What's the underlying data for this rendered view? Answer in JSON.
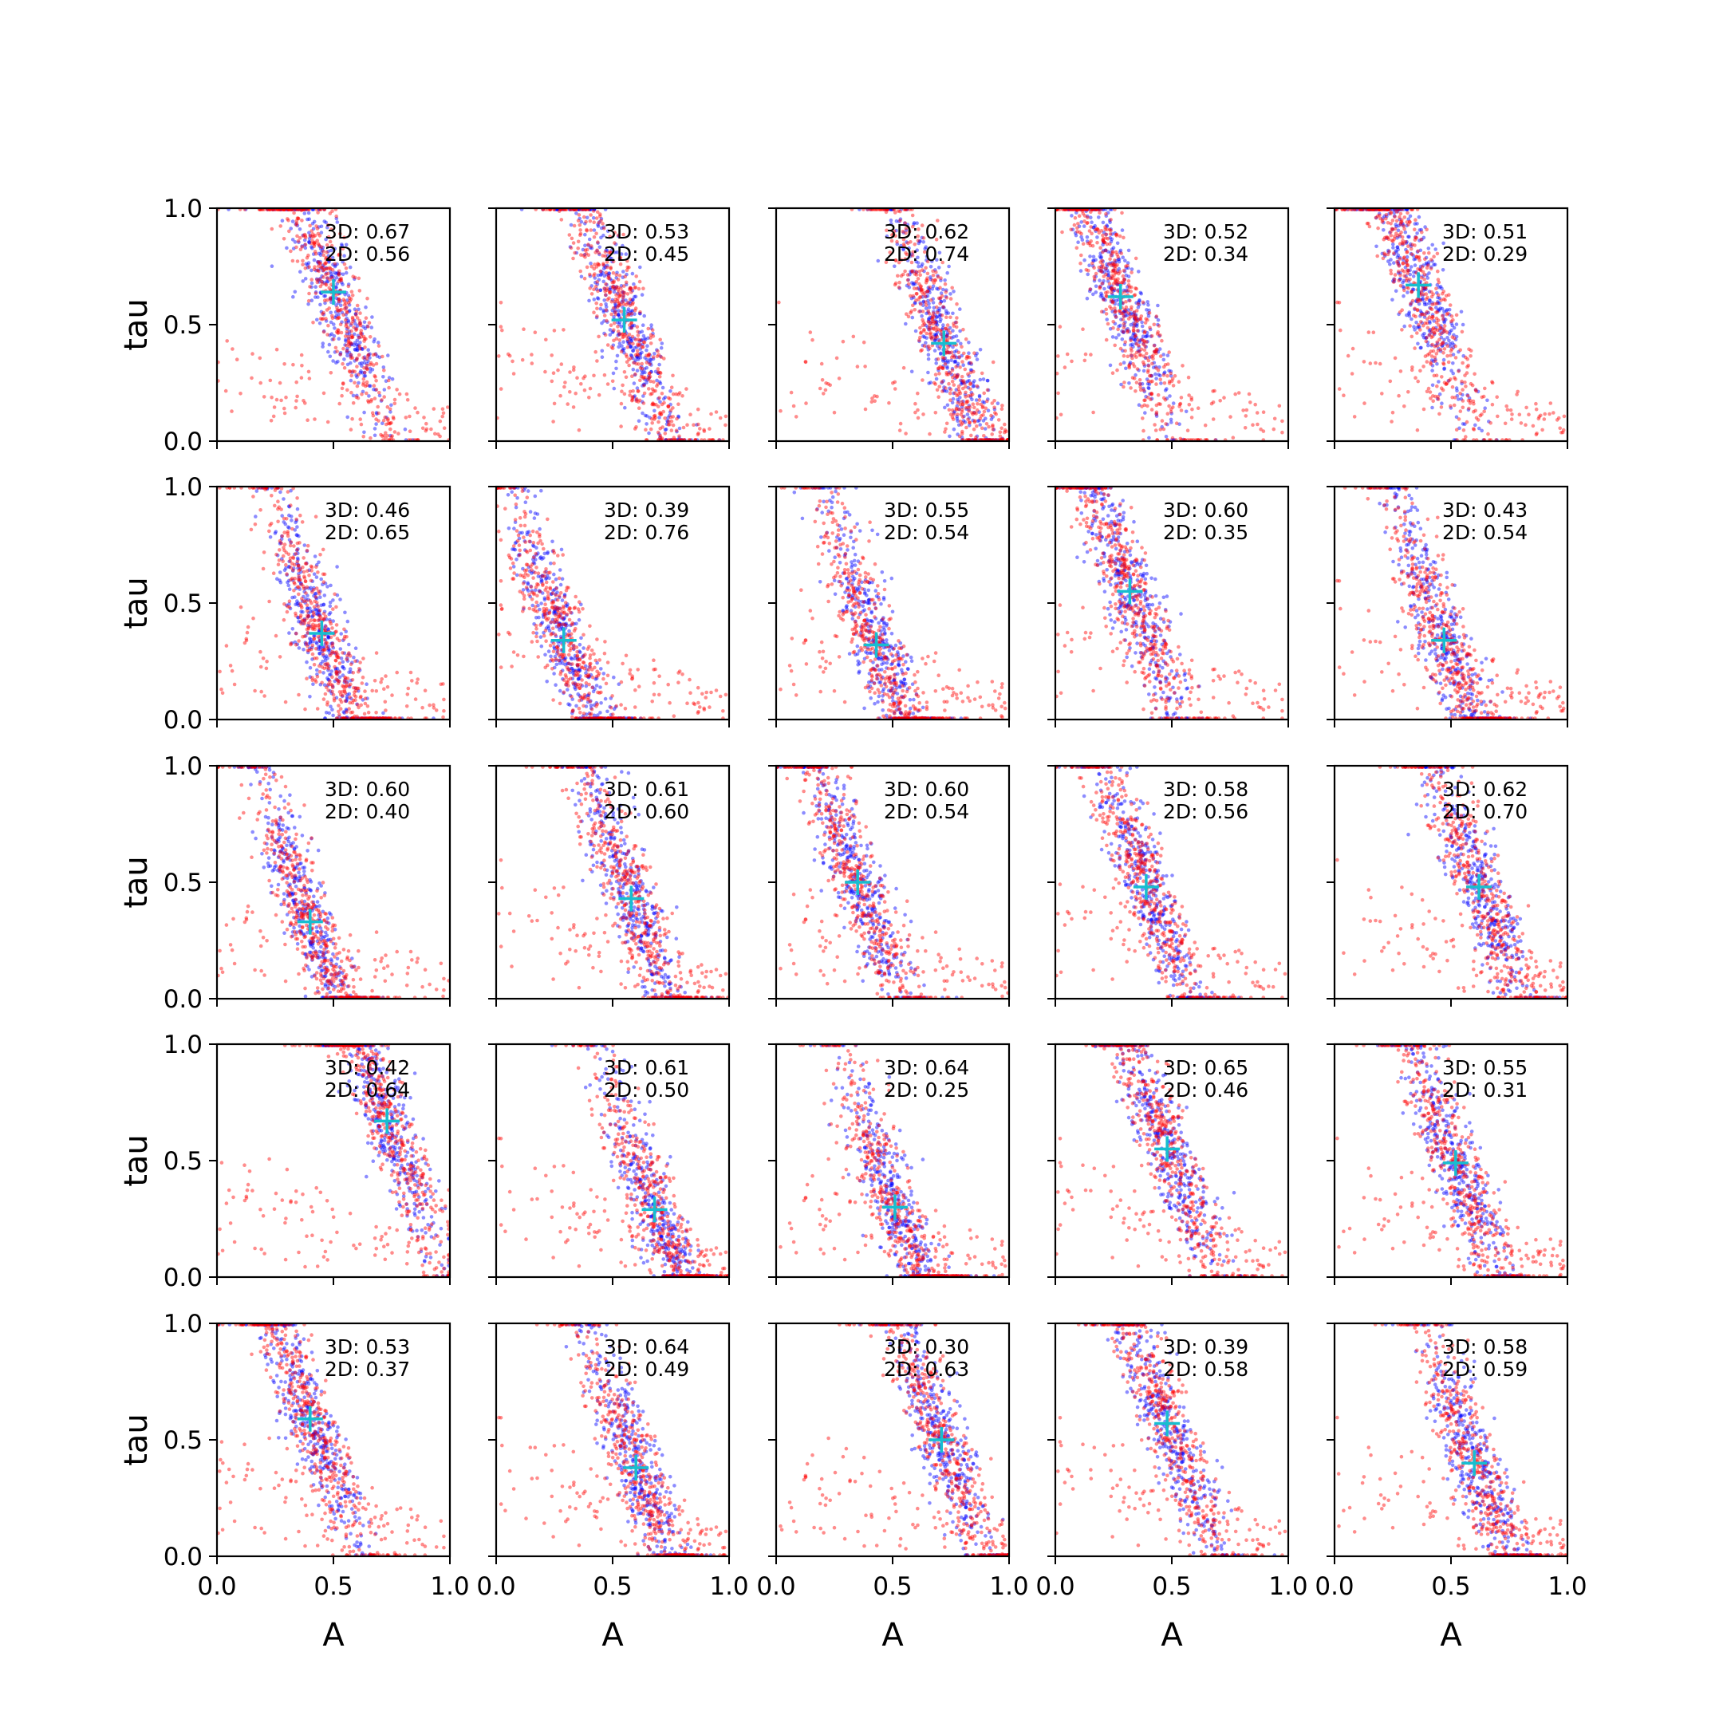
{
  "colors": {
    "series_3d": "#0000ff",
    "series_2d": "#ff0000",
    "truth_marker": "#17becf",
    "axes": "#000000"
  },
  "chart_data": {
    "type": "scatter",
    "layout": {
      "rows": 5,
      "cols": 5
    },
    "xlabel": "A",
    "ylabel": "tau",
    "xlim": [
      0,
      1
    ],
    "ylim": [
      0,
      1
    ],
    "x_ticks": [
      "0.0",
      "0.5",
      "1.0"
    ],
    "y_ticks": [
      "0.0",
      "0.5",
      "1.0"
    ],
    "grid": false,
    "marker": "+",
    "panels": [
      {
        "r3d": "0.67",
        "r2d": "0.56",
        "truth": [
          0.5,
          0.64
        ]
      },
      {
        "r3d": "0.53",
        "r2d": "0.45",
        "truth": [
          0.55,
          0.52
        ]
      },
      {
        "r3d": "0.62",
        "r2d": "0.74",
        "truth": [
          0.72,
          0.42
        ]
      },
      {
        "r3d": "0.52",
        "r2d": "0.34",
        "truth": [
          0.28,
          0.62
        ]
      },
      {
        "r3d": "0.51",
        "r2d": "0.29",
        "truth": [
          0.36,
          0.67
        ]
      },
      {
        "r3d": "0.46",
        "r2d": "0.65",
        "truth": [
          0.45,
          0.37
        ]
      },
      {
        "r3d": "0.39",
        "r2d": "0.76",
        "truth": [
          0.29,
          0.34
        ]
      },
      {
        "r3d": "0.55",
        "r2d": "0.54",
        "truth": [
          0.43,
          0.32
        ]
      },
      {
        "r3d": "0.60",
        "r2d": "0.35",
        "truth": [
          0.32,
          0.55
        ]
      },
      {
        "r3d": "0.43",
        "r2d": "0.54",
        "truth": [
          0.47,
          0.34
        ]
      },
      {
        "r3d": "0.60",
        "r2d": "0.40",
        "truth": [
          0.4,
          0.33
        ]
      },
      {
        "r3d": "0.61",
        "r2d": "0.60",
        "truth": [
          0.58,
          0.43
        ]
      },
      {
        "r3d": "0.60",
        "r2d": "0.54",
        "truth": [
          0.35,
          0.5
        ]
      },
      {
        "r3d": "0.58",
        "r2d": "0.56",
        "truth": [
          0.39,
          0.48
        ]
      },
      {
        "r3d": "0.62",
        "r2d": "0.70",
        "truth": [
          0.62,
          0.48
        ]
      },
      {
        "r3d": "0.42",
        "r2d": "0.64",
        "truth": [
          0.73,
          0.67
        ]
      },
      {
        "r3d": "0.61",
        "r2d": "0.50",
        "truth": [
          0.68,
          0.29
        ]
      },
      {
        "r3d": "0.64",
        "r2d": "0.25",
        "truth": [
          0.51,
          0.3
        ]
      },
      {
        "r3d": "0.65",
        "r2d": "0.46",
        "truth": [
          0.48,
          0.55
        ]
      },
      {
        "r3d": "0.55",
        "r2d": "0.31",
        "truth": [
          0.52,
          0.49
        ]
      },
      {
        "r3d": "0.53",
        "r2d": "0.37",
        "truth": [
          0.4,
          0.59
        ]
      },
      {
        "r3d": "0.64",
        "r2d": "0.49",
        "truth": [
          0.6,
          0.38
        ]
      },
      {
        "r3d": "0.30",
        "r2d": "0.63",
        "truth": [
          0.71,
          0.5
        ]
      },
      {
        "r3d": "0.39",
        "r2d": "0.58",
        "truth": [
          0.48,
          0.57
        ]
      },
      {
        "r3d": "0.58",
        "r2d": "0.59",
        "truth": [
          0.6,
          0.4
        ]
      }
    ]
  }
}
